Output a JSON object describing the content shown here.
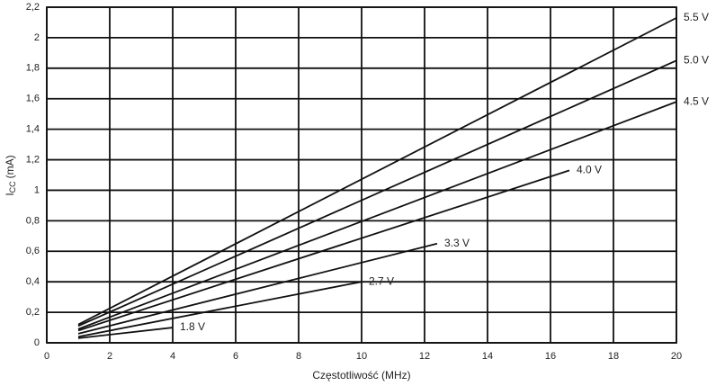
{
  "chart_data": {
    "type": "line",
    "xlabel": "Częstotliwość (MHz)",
    "ylabel": [
      "I",
      "CC",
      "(mA)"
    ],
    "xlim": [
      0,
      20
    ],
    "ylim": [
      0,
      2.2
    ],
    "xticks": [
      0,
      2,
      4,
      6,
      8,
      10,
      12,
      14,
      16,
      18,
      20
    ],
    "yticks": [
      0,
      {
        "value": 0.2,
        "label": "0,2"
      },
      {
        "value": 0.4,
        "label": "0,4"
      },
      {
        "value": 0.6,
        "label": "0,6"
      },
      {
        "value": 0.8,
        "label": "0,8"
      },
      1,
      {
        "value": 1.2,
        "label": "1,2"
      },
      {
        "value": 1.4,
        "label": "1,4"
      },
      {
        "value": 1.6,
        "label": "1,6"
      },
      {
        "value": 1.8,
        "label": "1,8"
      },
      2,
      {
        "value": 2.2,
        "label": "2,2"
      }
    ],
    "grid": true,
    "series": [
      {
        "name": "5.5 V",
        "color": "#111111",
        "x": [
          1,
          20
        ],
        "values": [
          0.12,
          2.13
        ]
      },
      {
        "name": "5.0 V",
        "color": "#111111",
        "x": [
          1,
          20
        ],
        "values": [
          0.11,
          1.85
        ]
      },
      {
        "name": "4.5 V",
        "color": "#111111",
        "x": [
          1,
          20
        ],
        "values": [
          0.09,
          1.58
        ]
      },
      {
        "name": "4.0 V",
        "color": "#111111",
        "x": [
          1,
          16.6
        ],
        "values": [
          0.08,
          1.13
        ]
      },
      {
        "name": "3.3 V",
        "color": "#111111",
        "x": [
          1,
          12.4
        ],
        "values": [
          0.06,
          0.65
        ]
      },
      {
        "name": "2.7 V",
        "color": "#111111",
        "x": [
          1,
          10
        ],
        "values": [
          0.04,
          0.4
        ]
      },
      {
        "name": "1.8 V",
        "color": "#111111",
        "x": [
          1,
          4
        ],
        "values": [
          0.03,
          0.1
        ]
      }
    ]
  }
}
